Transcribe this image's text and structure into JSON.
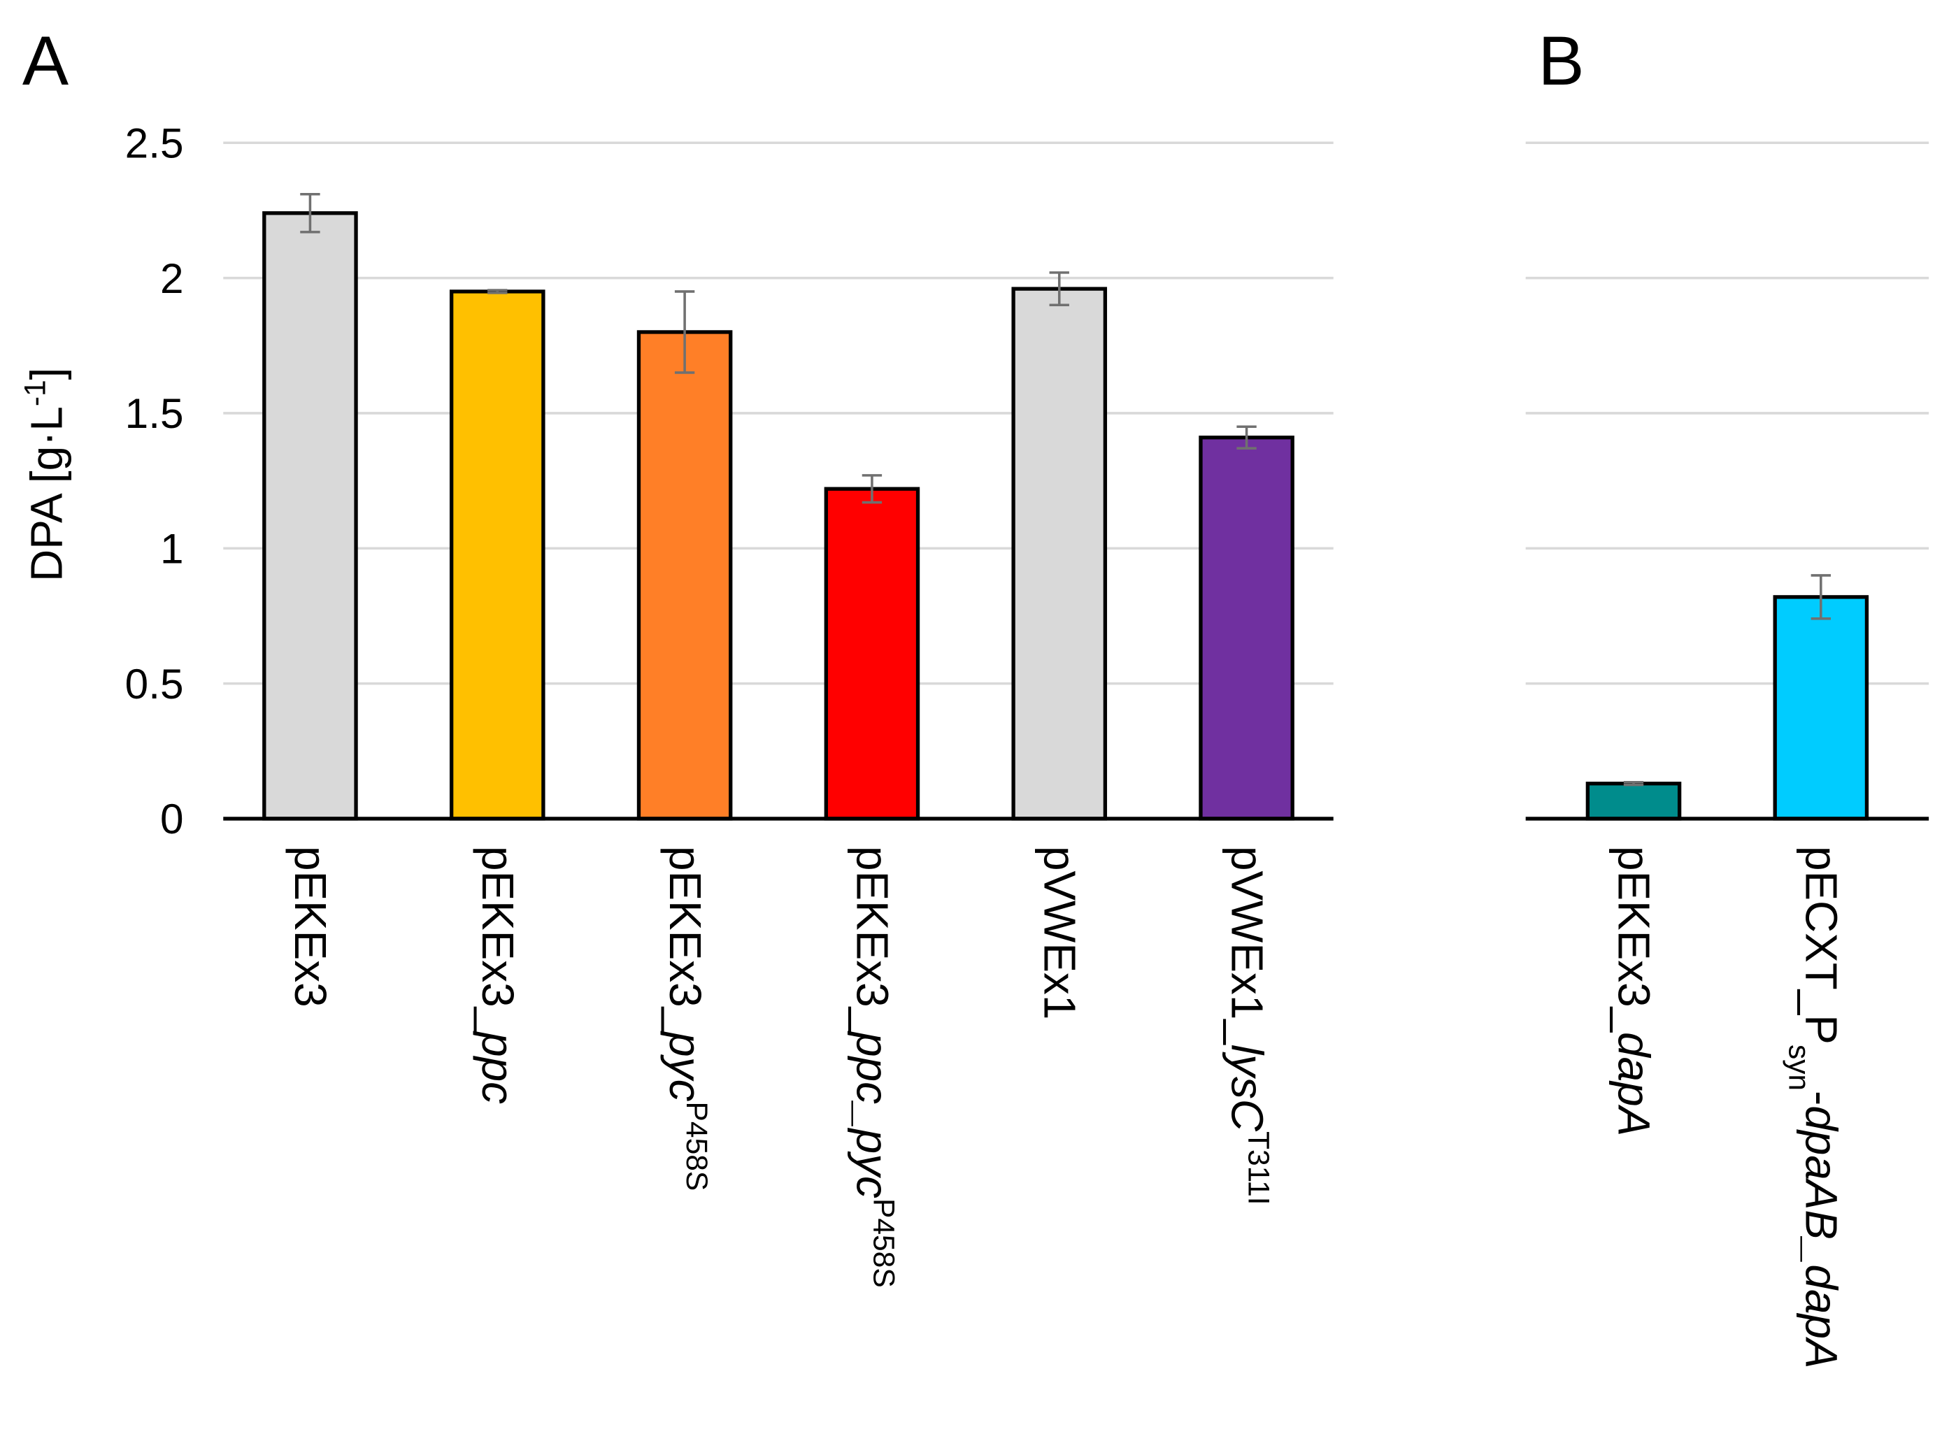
{
  "chart_data": [
    {
      "type": "bar",
      "title": "A",
      "ylabel": [
        {
          "text": "DPA [g·L"
        },
        {
          "text": "-1",
          "style": "sup"
        },
        {
          "text": "]"
        }
      ],
      "categories": [
        [
          {
            "text": "pEKEx3"
          }
        ],
        [
          {
            "text": "pEKEx3_"
          },
          {
            "text": "ppc",
            "style": "italic"
          }
        ],
        [
          {
            "text": "pEKEx3_"
          },
          {
            "text": "pyc",
            "style": "italic"
          },
          {
            "text": "P458S",
            "style": "sup"
          }
        ],
        [
          {
            "text": "pEKEx3_"
          },
          {
            "text": "ppc_pyc",
            "style": "italic"
          },
          {
            "text": "P458S",
            "style": "sup"
          }
        ],
        [
          {
            "text": "pVWEx1"
          }
        ],
        [
          {
            "text": "pVWEx1_"
          },
          {
            "text": "lysC",
            "style": "italic"
          },
          {
            "text": "T311I",
            "style": "sup"
          }
        ]
      ],
      "values": [
        2.24,
        1.95,
        1.8,
        1.22,
        1.96,
        1.41
      ],
      "errors": [
        0.07,
        0.005,
        0.15,
        0.05,
        0.06,
        0.04
      ],
      "colors": [
        "#d9d9d9",
        "#ffc000",
        "#ff7f27",
        "#ff0000",
        "#d9d9d9",
        "#7030a0"
      ],
      "ylim": [
        0,
        2.5
      ],
      "yticks": [
        0,
        0.5,
        1,
        1.5,
        2,
        2.5
      ],
      "tick_labels": true,
      "grid": true
    },
    {
      "type": "bar",
      "title": "B",
      "categories": [
        [
          {
            "text": "pEKEx3_"
          },
          {
            "text": "dapA",
            "style": "italic"
          }
        ],
        [
          {
            "text": "pECXT_P"
          },
          {
            "text": "syn",
            "style": "sub"
          },
          {
            "text": "-"
          },
          {
            "text": "dpaAB_dapA",
            "style": "italic"
          }
        ]
      ],
      "values": [
        0.13,
        0.82
      ],
      "errors": [
        0.005,
        0.08
      ],
      "colors": [
        "#008c8c",
        "#00ccff"
      ],
      "ylim": [
        0,
        2.5
      ],
      "yticks": [
        0,
        0.5,
        1,
        1.5,
        2,
        2.5
      ],
      "tick_labels": false,
      "grid": true
    }
  ]
}
